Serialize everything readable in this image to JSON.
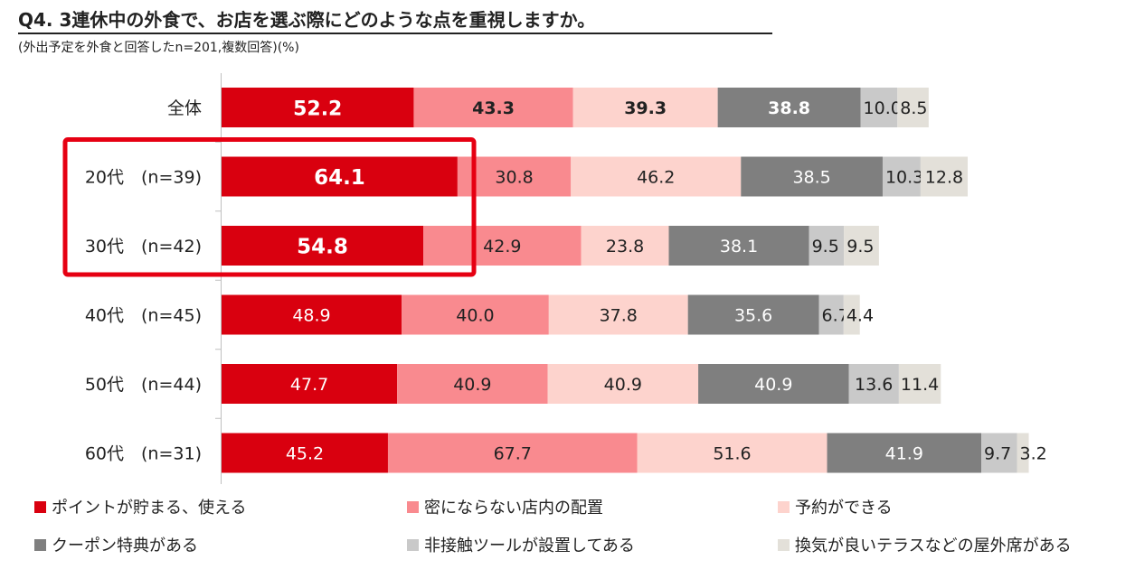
{
  "title": "Q4. 3連休中の外食で、お店を選ぶ際にどのような点を重視しますか。",
  "subtitle": "(外出予定を外食と回答したn=201,複数回答)(%)",
  "chart_data": {
    "type": "bar",
    "orientation": "horizontal-stacked",
    "categories": [
      "全体",
      "20代　(n=39)",
      "30代　(n=42)",
      "40代　(n=45)",
      "50代　(n=44)",
      "60代　(n=31)"
    ],
    "series": [
      {
        "name": "ポイントが貯まる、使える",
        "color": "#d9000f",
        "values": [
          52.2,
          64.1,
          54.8,
          48.9,
          47.7,
          45.2
        ]
      },
      {
        "name": "密にならない店内の配置",
        "color": "#f98a8f",
        "values": [
          43.3,
          30.8,
          42.9,
          40.0,
          40.9,
          67.7
        ]
      },
      {
        "name": "予約ができる",
        "color": "#fdd3cd",
        "values": [
          39.3,
          46.2,
          23.8,
          37.8,
          40.9,
          51.6
        ]
      },
      {
        "name": "クーポン特典がある",
        "color": "#7f7f7f",
        "values": [
          38.8,
          38.5,
          38.1,
          35.6,
          40.9,
          41.9
        ]
      },
      {
        "name": "非接触ツールが設置してある",
        "color": "#c9c9c9",
        "values": [
          10.0,
          10.3,
          9.5,
          6.7,
          13.6,
          9.7
        ]
      },
      {
        "name": "換気が良いテラスなどの屋外席がある",
        "color": "#e3e0d9",
        "values": [
          8.5,
          12.8,
          9.5,
          4.4,
          11.4,
          3.2
        ]
      }
    ],
    "value_labels": [
      [
        "52.2",
        "43.3",
        "39.3",
        "38.8",
        "10.0",
        "8.5"
      ],
      [
        "64.1",
        "30.8",
        "46.2",
        "38.5",
        "10.3",
        "12.8"
      ],
      [
        "54.8",
        "42.9",
        "23.8",
        "38.1",
        "9.5",
        "9.5"
      ],
      [
        "48.9",
        "40.0",
        "37.8",
        "35.6",
        "6.7",
        "4.4"
      ],
      [
        "47.7",
        "40.9",
        "40.9",
        "40.9",
        "13.6",
        "11.4"
      ],
      [
        "45.2",
        "67.7",
        "51.6",
        "41.9",
        "9.7",
        "3.2"
      ]
    ],
    "highlight_rows": [
      "20代　(n=39)",
      "30代　(n=42)"
    ],
    "highlight_color": "#e60012",
    "xlabel": "",
    "ylabel": ""
  },
  "legend": [
    {
      "label": "ポイントが貯まる、使える",
      "color": "#d9000f"
    },
    {
      "label": "密にならない店内の配置",
      "color": "#f98a8f"
    },
    {
      "label": "予約ができる",
      "color": "#fdd3cd"
    },
    {
      "label": "クーポン特典がある",
      "color": "#7f7f7f"
    },
    {
      "label": "非接触ツールが設置してある",
      "color": "#c9c9c9"
    },
    {
      "label": "換気が良いテラスなどの屋外席がある",
      "color": "#e3e0d9"
    }
  ]
}
